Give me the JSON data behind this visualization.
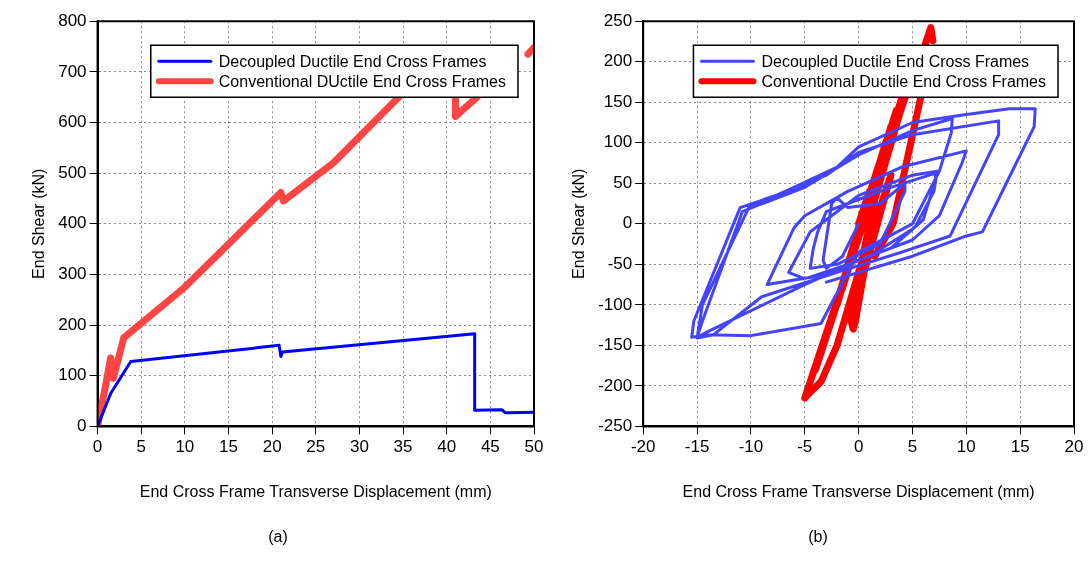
{
  "chart_data": [
    {
      "type": "line",
      "xlabel": "End Cross Frame Transverse Displacement (mm)",
      "ylabel": "End Shear (kN)",
      "annotations": [
        "(a)"
      ],
      "xlim": [
        0,
        50
      ],
      "xticks": [
        0,
        5,
        10,
        15,
        20,
        25,
        30,
        35,
        40,
        45,
        50
      ],
      "ylim": [
        0,
        800
      ],
      "yticks": [
        0,
        100,
        200,
        300,
        400,
        500,
        600,
        700,
        800
      ],
      "grid": true,
      "legend": "top right",
      "series": [
        {
          "name": "Decoupled Ductile End Cross Frames",
          "color": "#0000ff",
          "x": [
            0,
            1.5,
            3.8,
            20.8,
            21,
            21.2,
            43.2,
            43.2,
            46.3,
            46.7,
            50
          ],
          "values": [
            0,
            65,
            128,
            160,
            138,
            147,
            183,
            32,
            33,
            27,
            28
          ]
        },
        {
          "name": "Conventional DUctile End Cross Frames",
          "color": "#ff4444",
          "x": [
            0,
            0.8,
            1.5,
            1.8,
            3,
            10,
            21,
            21.3,
            27,
            34.6,
            null,
            41,
            41,
            43.6,
            null,
            49.3,
            50
          ],
          "values": [
            0,
            70,
            135,
            95,
            175,
            275,
            462,
            445,
            520,
            652,
            null,
            652,
            612,
            652,
            null,
            735,
            748
          ]
        }
      ]
    },
    {
      "type": "line",
      "xlabel": "End Cross Frame Transverse Displacement (mm)",
      "ylabel": "End Shear (kN)",
      "annotations": [
        "(b)"
      ],
      "xlim": [
        -20,
        20
      ],
      "xticks": [
        -20,
        -15,
        -10,
        -5,
        0,
        5,
        10,
        15,
        20
      ],
      "ylim": [
        -250,
        250
      ],
      "yticks": [
        -250,
        -200,
        -150,
        -100,
        -50,
        0,
        50,
        100,
        150,
        200,
        250
      ],
      "grid": true,
      "legend": "top right",
      "series": [
        {
          "name": "Decoupled Ductile End Cross Frames",
          "color": "#4444ff",
          "x": [
            0,
            -1.5,
            -3,
            -3.3,
            -2.5,
            -2,
            -1,
            2,
            4.3,
            4.3,
            2,
            -2,
            -4.5,
            -4.2,
            -3.8,
            -3,
            0,
            3,
            7,
            7.2,
            6,
            3,
            -1,
            -5,
            -6.5,
            -4.5,
            -3.5,
            0,
            5,
            7.3,
            7,
            5.2,
            1,
            -4,
            -8.5,
            -6,
            -5,
            -1,
            4,
            10,
            9.6,
            7.5,
            5,
            0,
            -5,
            -14,
            -15,
            -14.5,
            -10.8,
            -9.5,
            -5,
            0,
            5,
            8.7,
            8.6,
            7.5,
            5,
            0,
            -3.5,
            -10,
            -14,
            -15.5,
            -15.3,
            -11,
            -7,
            -3,
            0,
            5,
            13,
            13,
            8.5,
            4,
            -2,
            -9,
            -13.5,
            -15,
            -14.5,
            -10.2,
            -6,
            -2,
            0,
            5,
            10,
            14,
            16.4,
            16.3,
            11.5,
            10,
            5,
            0,
            -3
          ],
          "values": [
            0,
            -40,
            -55,
            -45,
            25,
            32,
            20,
            25,
            50,
            40,
            -25,
            -50,
            -55,
            -30,
            -10,
            15,
            30,
            45,
            62,
            57,
            5,
            -30,
            -50,
            -68,
            -60,
            -10,
            0,
            35,
            60,
            65,
            40,
            -5,
            -40,
            -65,
            -75,
            -5,
            10,
            40,
            70,
            90,
            75,
            10,
            -20,
            -45,
            -75,
            -133,
            -140,
            -120,
            15,
            22,
            45,
            85,
            115,
            130,
            112,
            65,
            0,
            -35,
            -123,
            -138,
            -137,
            -140,
            -120,
            20,
            38,
            60,
            88,
            110,
            127,
            110,
            -15,
            -35,
            -60,
            -90,
            -137,
            -141,
            -100,
            20,
            45,
            70,
            95,
            125,
            135,
            142,
            142,
            120,
            -10,
            -15,
            -40,
            -60,
            -72
          ]
        },
        {
          "name": "Conventional Ductile End Cross Frames",
          "color": "#ff0000",
          "x": [
            0,
            1,
            -1,
            1.8,
            -1.5,
            2.5,
            -2,
            3,
            -2.8,
            3.5,
            -3.5,
            4,
            -4,
            3.5,
            -4.5,
            4.3,
            -5,
            -4.5,
            -3.5,
            -2,
            0,
            1.5,
            3,
            0.5,
            -0.3,
            -0.5,
            -0.8,
            1.5,
            4.3,
            null,
            6.2,
            6.7,
            6.9,
            null,
            5.8,
            3.2,
            1.5
          ],
          "values": [
            0,
            40,
            -50,
            70,
            -80,
            100,
            -100,
            120,
            -130,
            140,
            -160,
            155,
            -180,
            125,
            -195,
            155,
            -215,
            -208,
            -195,
            -150,
            -60,
            0,
            60,
            -60,
            -120,
            -130,
            -115,
            30,
            158,
            null,
            222,
            242,
            226,
            null,
            158,
            0,
            -40
          ]
        }
      ]
    }
  ]
}
